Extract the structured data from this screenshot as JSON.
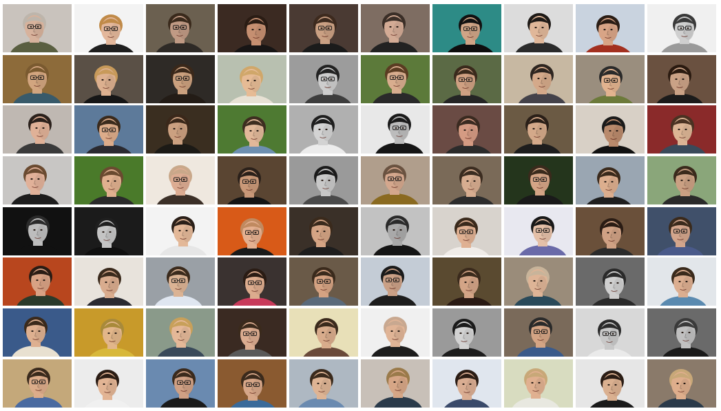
{
  "gallery": {
    "columns": 10,
    "rows": 8,
    "tiles": [
      {
        "bg": "#c9c3bd",
        "skin": "#d7b29c",
        "hair": "#bdb5ab",
        "shirt": "#5a5f41",
        "glasses": true
      },
      {
        "bg": "#f3f3f3",
        "skin": "#e3b79b",
        "hair": "#c08a48",
        "shirt": "#1f1f1f",
        "glasses": true
      },
      {
        "bg": "#6b6050",
        "skin": "#c09a84",
        "hair": "#3a2a1c",
        "shirt": "#2e2a26",
        "glasses": true
      },
      {
        "bg": "#3b2a22",
        "skin": "#c58f71",
        "hair": "#2a1c14",
        "shirt": "#171515",
        "glasses": false
      },
      {
        "bg": "#4a3a33",
        "skin": "#caa083",
        "hair": "#3d2a1e",
        "shirt": "#1b1b1b",
        "glasses": true
      },
      {
        "bg": "#7e6d62",
        "skin": "#d3ab95",
        "hair": "#3a2e27",
        "shirt": "#222222",
        "glasses": false
      },
      {
        "bg": "#2d8b86",
        "skin": "#cfa486",
        "hair": "#111111",
        "shirt": "#0e0e0e",
        "glasses": true
      },
      {
        "bg": "#dcdcdc",
        "skin": "#e0b799",
        "hair": "#1e1a17",
        "shirt": "#2b2b2b",
        "glasses": false
      },
      {
        "bg": "#c9d3df",
        "skin": "#d8a486",
        "hair": "#2a1d15",
        "shirt": "#a33020",
        "glasses": false
      },
      {
        "bg": "#f0f0f0",
        "skin": "#cfcfcf",
        "hair": "#3a3a3a",
        "shirt": "#9a9a9a",
        "glasses": true
      },
      {
        "bg": "#8d6b3a",
        "skin": "#d2a57f",
        "hair": "#7a5a30",
        "shirt": "#385a6a",
        "glasses": true
      },
      {
        "bg": "#5a5046",
        "skin": "#dcb08f",
        "hair": "#c89a5a",
        "shirt": "#161616",
        "glasses": false
      },
      {
        "bg": "#2e2a26",
        "skin": "#caa07e",
        "hair": "#3a281a",
        "shirt": "#231c16",
        "glasses": true
      },
      {
        "bg": "#b8c0b0",
        "skin": "#e6bb95",
        "hair": "#d0a76a",
        "shirt": "#e7e1d4",
        "glasses": false
      },
      {
        "bg": "#9c9c9c",
        "skin": "#cdcdcd",
        "hair": "#222222",
        "shirt": "#3d3d3d",
        "glasses": true
      },
      {
        "bg": "#5c7a3a",
        "skin": "#d8ad8e",
        "hair": "#5a3c22",
        "shirt": "#2a2a2a",
        "glasses": true
      },
      {
        "bg": "#5b6a45",
        "skin": "#cfa082",
        "hair": "#3a2a1c",
        "shirt": "#252525",
        "glasses": true
      },
      {
        "bg": "#c7b8a2",
        "skin": "#d4a98a",
        "hair": "#2d2520",
        "shirt": "#44424a",
        "glasses": false
      },
      {
        "bg": "#9a8e7e",
        "skin": "#e2b38f",
        "hair": "#2a2a2a",
        "shirt": "#6c7a3a",
        "glasses": true
      },
      {
        "bg": "#6a5140",
        "skin": "#caa286",
        "hair": "#2a1a10",
        "shirt": "#1b1b1b",
        "glasses": false
      },
      {
        "bg": "#bfb8b2",
        "skin": "#e0b197",
        "hair": "#2a201b",
        "shirt": "#3a3a3a",
        "glasses": false
      },
      {
        "bg": "#5d7a9a",
        "skin": "#dcac8a",
        "hair": "#3a2a1c",
        "shirt": "#2a2a30",
        "glasses": true
      },
      {
        "bg": "#3a2e20",
        "skin": "#cba080",
        "hair": "#3a281a",
        "shirt": "#1c1a16",
        "glasses": false
      },
      {
        "bg": "#4e7a32",
        "skin": "#e1b899",
        "hair": "#3d2d20",
        "shirt": "#6d8fb0",
        "glasses": false
      },
      {
        "bg": "#b0b0b0",
        "skin": "#d3d3d3",
        "hair": "#1e1e1e",
        "shirt": "#ececec",
        "glasses": false
      },
      {
        "bg": "#e8e8e8",
        "skin": "#bcbcbc",
        "hair": "#1a1a1a",
        "shirt": "#151515",
        "glasses": true
      },
      {
        "bg": "#6a4b44",
        "skin": "#d59b83",
        "hair": "#3a2a20",
        "shirt": "#2b2b2b",
        "glasses": false
      },
      {
        "bg": "#6b5a44",
        "skin": "#d4a98a",
        "hair": "#2a1f18",
        "shirt": "#1d1d1d",
        "glasses": false
      },
      {
        "bg": "#d8d0c6",
        "skin": "#b98a6c",
        "hair": "#1a1a1a",
        "shirt": "#111111",
        "glasses": false
      },
      {
        "bg": "#8a2a2a",
        "skin": "#dcb595",
        "hair": "#4a3222",
        "shirt": "#3a4a5a",
        "glasses": false
      },
      {
        "bg": "#c8c6c4",
        "skin": "#e1b199",
        "hair": "#6a4a30",
        "shirt": "#1d1d1d",
        "glasses": false
      },
      {
        "bg": "#4a7a2a",
        "skin": "#e0b08f",
        "hair": "#6a4a30",
        "shirt": "#2a2a2a",
        "glasses": false
      },
      {
        "bg": "#efe8df",
        "skin": "#dcac92",
        "hair": "#c9a88a",
        "shirt": "#3c3028",
        "glasses": true
      },
      {
        "bg": "#5a4532",
        "skin": "#c99878",
        "hair": "#2a201a",
        "shirt": "#141414",
        "glasses": true
      },
      {
        "bg": "#9a9a9a",
        "skin": "#c8c8c8",
        "hair": "#1a1a1a",
        "shirt": "#4a4a4a",
        "glasses": false
      },
      {
        "bg": "#b09e8c",
        "skin": "#d4a78d",
        "hair": "#6a5240",
        "shirt": "#8a6a20",
        "glasses": true
      },
      {
        "bg": "#7a6a58",
        "skin": "#d7ad90",
        "hair": "#3b2c20",
        "shirt": "#2c2c2c",
        "glasses": false
      },
      {
        "bg": "#24351c",
        "skin": "#d4a486",
        "hair": "#3a2a1c",
        "shirt": "#1a1a1a",
        "glasses": true
      },
      {
        "bg": "#9aa6b2",
        "skin": "#dcae8e",
        "hair": "#3a2a1c",
        "shirt": "#1e1e1e",
        "glasses": false
      },
      {
        "bg": "#8aa67a",
        "skin": "#caa083",
        "hair": "#3a2a1c",
        "shirt": "#2a2a2a",
        "glasses": false
      },
      {
        "bg": "#111111",
        "skin": "#bdbdbd",
        "hair": "#2a2a2a",
        "shirt": "#111111",
        "glasses": false
      },
      {
        "bg": "#1b1b1b",
        "skin": "#c4c4c4",
        "hair": "#1f1f1f",
        "shirt": "#101010",
        "glasses": false
      },
      {
        "bg": "#f3f3f3",
        "skin": "#e3b898",
        "hair": "#2a1f18",
        "shirt": "#e6e6e6",
        "glasses": false
      },
      {
        "bg": "#d85a18",
        "skin": "#e4b090",
        "hair": "#c08a60",
        "shirt": "#1a1a1a",
        "glasses": true
      },
      {
        "bg": "#3a3028",
        "skin": "#d4a484",
        "hair": "#3a2a1c",
        "shirt": "#1d1d1d",
        "glasses": false
      },
      {
        "bg": "#c2c2c2",
        "skin": "#a9a9a9",
        "hair": "#2a2a2a",
        "shirt": "#151515",
        "glasses": false
      },
      {
        "bg": "#d8d3cd",
        "skin": "#dfb092",
        "hair": "#3a2a1c",
        "shirt": "#f0ece8",
        "glasses": true
      },
      {
        "bg": "#e8e8f0",
        "skin": "#e4c0a8",
        "hair": "#181818",
        "shirt": "#6a6aa8",
        "glasses": true
      },
      {
        "bg": "#6a503a",
        "skin": "#cfa184",
        "hair": "#2a1c14",
        "shirt": "#2b2b2b",
        "glasses": false
      },
      {
        "bg": "#40506a",
        "skin": "#d3a58c",
        "hair": "#3a2a1c",
        "shirt": "#4a5a8a",
        "glasses": true
      },
      {
        "bg": "#b8461e",
        "skin": "#d8a284",
        "hair": "#2a1c14",
        "shirt": "#2a3a2a",
        "glasses": false
      },
      {
        "bg": "#e8e3dc",
        "skin": "#d9ac8e",
        "hair": "#3a2a1c",
        "shirt": "#2a2a30",
        "glasses": false
      },
      {
        "bg": "#9aa0a6",
        "skin": "#dbb394",
        "hair": "#3a2a1c",
        "shirt": "#dfe6f0",
        "glasses": true
      },
      {
        "bg": "#3a3230",
        "skin": "#dcac8e",
        "hair": "#2a1c14",
        "shirt": "#c83a5a",
        "glasses": true
      },
      {
        "bg": "#6a5a48",
        "skin": "#d4a282",
        "hair": "#3a2a1c",
        "shirt": "#5a6a7a",
        "glasses": true
      },
      {
        "bg": "#c4ccd6",
        "skin": "#caa086",
        "hair": "#1a1a1a",
        "shirt": "#1d1d1d",
        "glasses": true
      },
      {
        "bg": "#5a4a30",
        "skin": "#d3a486",
        "hair": "#3a2a1c",
        "shirt": "#2a1a14",
        "glasses": false
      },
      {
        "bg": "#9a8c7a",
        "skin": "#deb496",
        "hair": "#c8b49a",
        "shirt": "#2a4a5a",
        "glasses": false
      },
      {
        "bg": "#6a6a6a",
        "skin": "#cfcfcf",
        "hair": "#2a2a2a",
        "shirt": "#2a2a2a",
        "glasses": false
      },
      {
        "bg": "#e2e6ea",
        "skin": "#dcae90",
        "hair": "#3a2a1c",
        "shirt": "#5a8ab0",
        "glasses": false
      },
      {
        "bg": "#3a5a8a",
        "skin": "#deb090",
        "hair": "#3a2a1c",
        "shirt": "#e8e0d0",
        "glasses": false
      },
      {
        "bg": "#c89a2a",
        "skin": "#e2b68a",
        "hair": "#a88a3a",
        "shirt": "#d8b83a",
        "glasses": false
      },
      {
        "bg": "#8a9a8a",
        "skin": "#e4b898",
        "hair": "#c8a05a",
        "shirt": "#3a4a5a",
        "glasses": false
      },
      {
        "bg": "#3a2a22",
        "skin": "#dbac90",
        "hair": "#3a2a1c",
        "shirt": "#5a5a5a",
        "glasses": true
      },
      {
        "bg": "#e8e0b8",
        "skin": "#d8ac8c",
        "hair": "#3a2a1c",
        "shirt": "#6a4a3a",
        "glasses": false
      },
      {
        "bg": "#f0f0f0",
        "skin": "#e0b496",
        "hair": "#c8a890",
        "shirt": "#1d1d1d",
        "glasses": false
      },
      {
        "bg": "#9a9a9a",
        "skin": "#d2d2d2",
        "hair": "#1a1a1a",
        "shirt": "#1d1d1d",
        "glasses": false
      },
      {
        "bg": "#7a6a5a",
        "skin": "#d4a484",
        "hair": "#2a2a2a",
        "shirt": "#3a5a8a",
        "glasses": true
      },
      {
        "bg": "#d8d8d8",
        "skin": "#c8c8c8",
        "hair": "#2a2a2a",
        "shirt": "#eaeaea",
        "glasses": true
      },
      {
        "bg": "#6a6a6a",
        "skin": "#c0c0c0",
        "hair": "#3a3a3a",
        "shirt": "#1a1a1a",
        "glasses": false
      },
      {
        "bg": "#c4a87a",
        "skin": "#dcac8a",
        "hair": "#3a2a1c",
        "shirt": "#4a6aa0",
        "glasses": true
      },
      {
        "bg": "#ececec",
        "skin": "#e2b494",
        "hair": "#2a1c14",
        "shirt": "#f0f0f0",
        "glasses": false
      },
      {
        "bg": "#6a8ab0",
        "skin": "#cfa084",
        "hair": "#3a2a1c",
        "shirt": "#1a1a1a",
        "glasses": true
      },
      {
        "bg": "#8a5a30",
        "skin": "#d6a688",
        "hair": "#3a2a1c",
        "shirt": "#3a6a9a",
        "glasses": true
      },
      {
        "bg": "#aeb8c2",
        "skin": "#deb494",
        "hair": "#3a2a1c",
        "shirt": "#6a8ab0",
        "glasses": false
      },
      {
        "bg": "#c8c0b8",
        "skin": "#d6a686",
        "hair": "#9a7a4a",
        "shirt": "#2a3a4a",
        "glasses": false
      },
      {
        "bg": "#e0e6ee",
        "skin": "#d9ad92",
        "hair": "#2a1c14",
        "shirt": "#3a4a6a",
        "glasses": false
      },
      {
        "bg": "#d8dcc0",
        "skin": "#e0b090",
        "hair": "#c8a878",
        "shirt": "#e8e8e0",
        "glasses": false
      },
      {
        "bg": "#e6e6e6",
        "skin": "#dab090",
        "hair": "#2a1c14",
        "shirt": "#1a1a1a",
        "glasses": false
      },
      {
        "bg": "#8a7a6a",
        "skin": "#deae8c",
        "hair": "#c8a878",
        "shirt": "#2a3a4a",
        "glasses": false
      }
    ]
  }
}
